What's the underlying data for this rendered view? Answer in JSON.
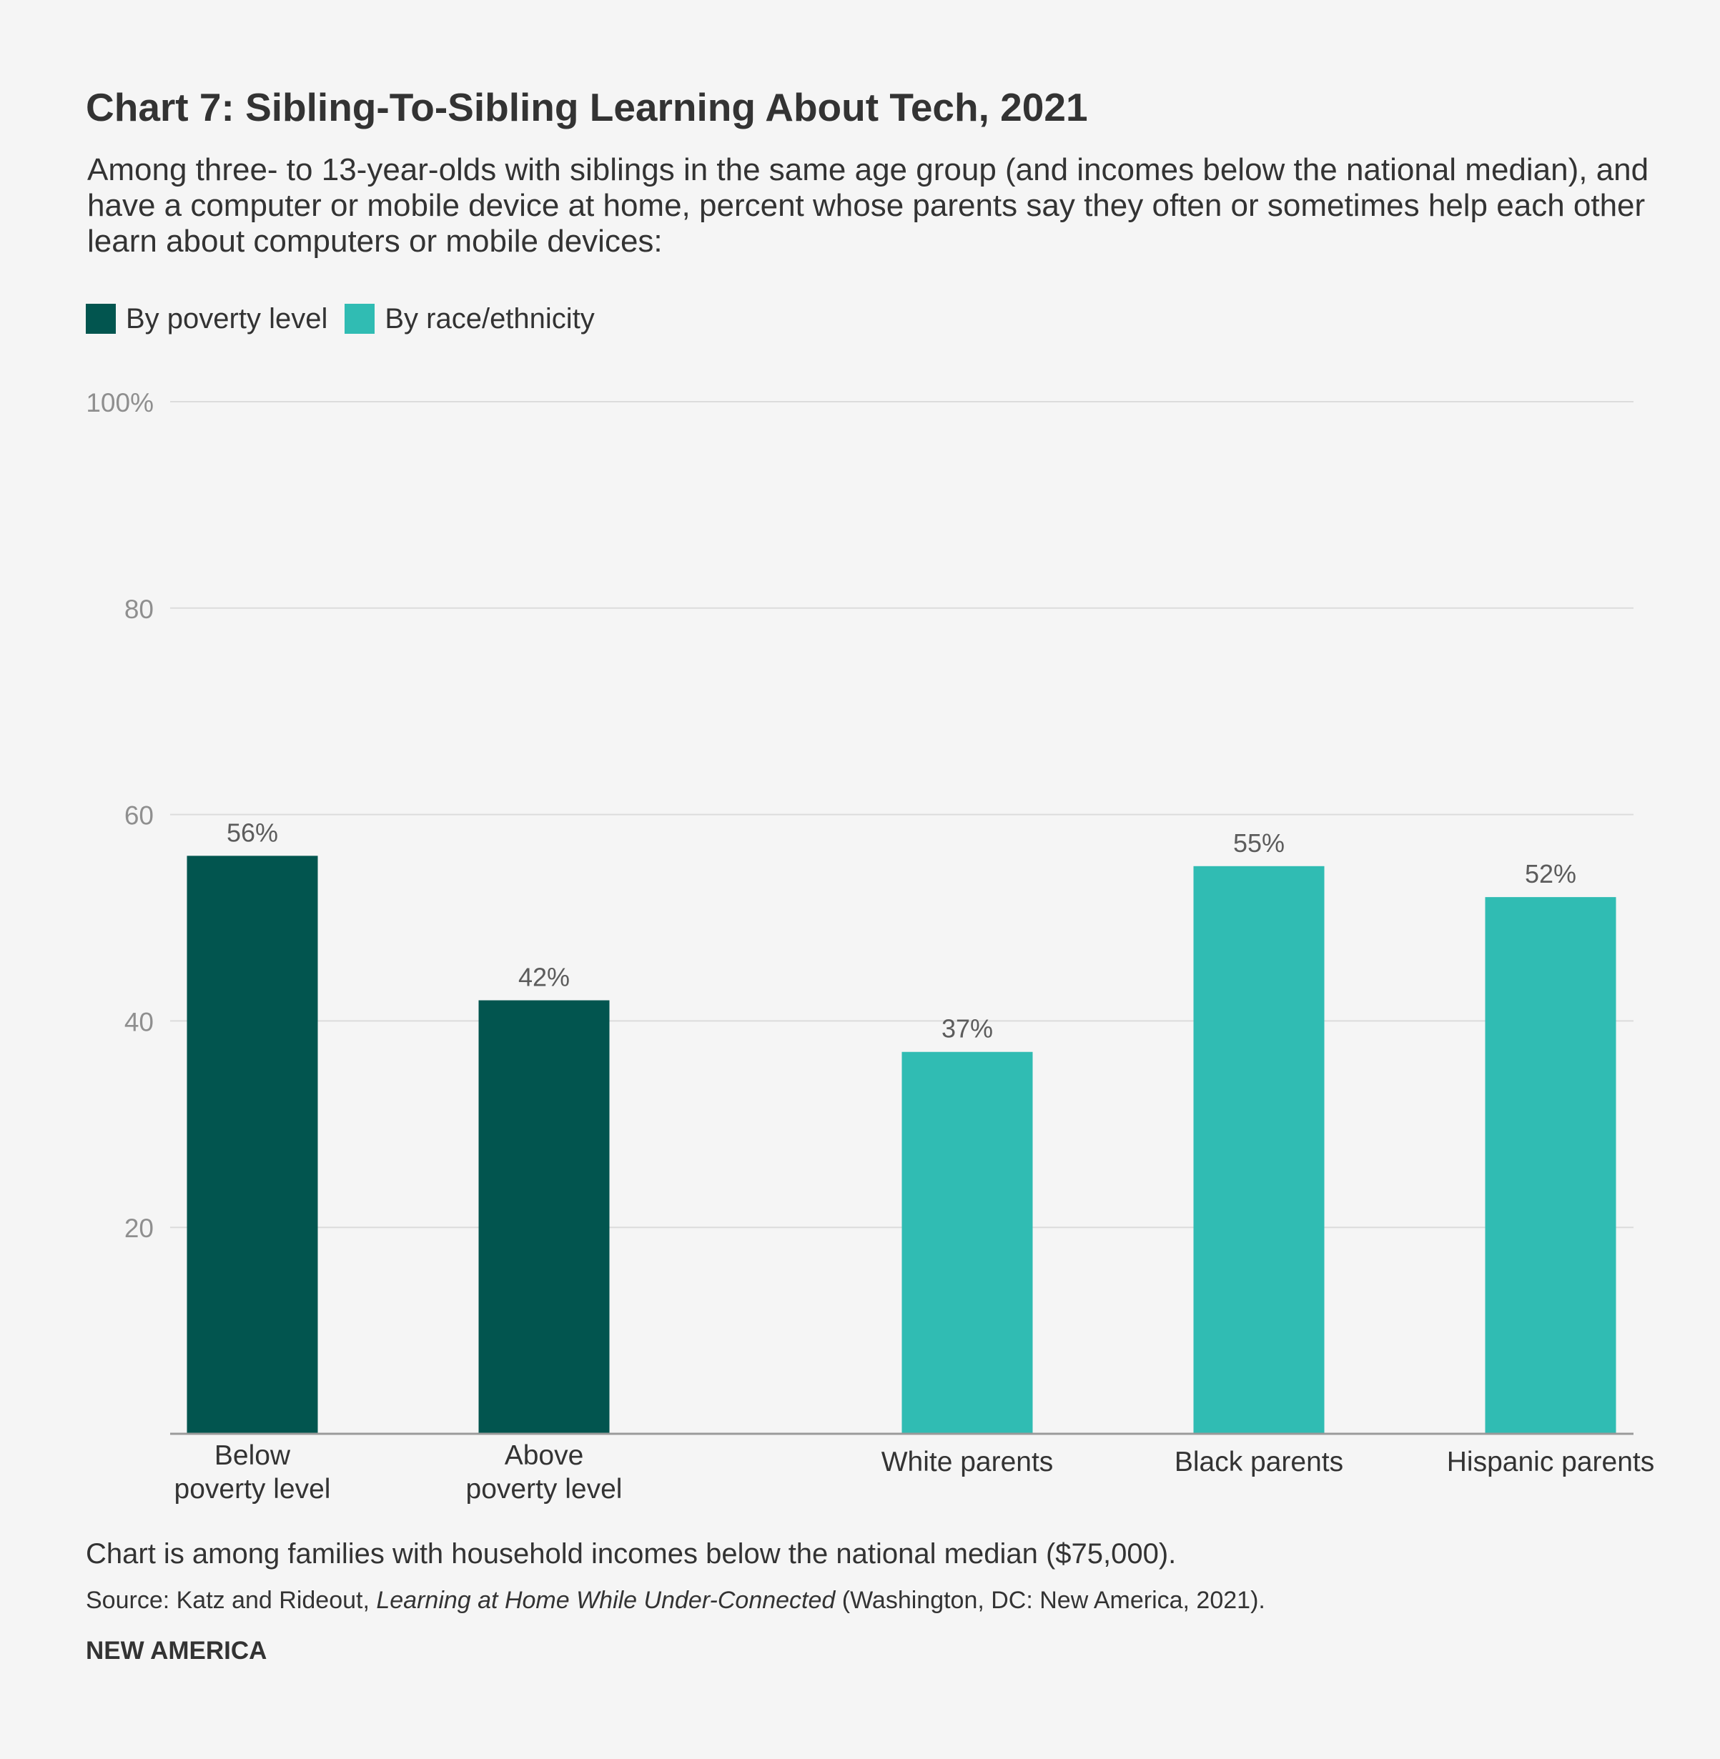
{
  "chart_data": {
    "type": "bar",
    "title": "Chart 7: Sibling-To-Sibling Learning About Tech, 2021",
    "subtitle": "Among three- to 13-year-olds with siblings in the same age group (and incomes below the national median), and have a computer or mobile device at home, percent whose parents say they often or sometimes help each other learn about computers or mobile devices:",
    "legend": [
      {
        "label": "By poverty level",
        "color": "#02554f"
      },
      {
        "label": "By race/ethnicity",
        "color": "#30bcb3"
      }
    ],
    "ylim": [
      0,
      100
    ],
    "yticks": [
      {
        "value": 20,
        "label": "20"
      },
      {
        "value": 40,
        "label": "40"
      },
      {
        "value": 60,
        "label": "60"
      },
      {
        "value": 80,
        "label": "80"
      },
      {
        "value": 100,
        "label": "100%"
      }
    ],
    "bars": [
      {
        "category": [
          "Below",
          "poverty level"
        ],
        "value": 56,
        "label": "56%",
        "group": "By poverty level"
      },
      {
        "category": [
          "Above",
          "poverty level"
        ],
        "value": 42,
        "label": "42%",
        "group": "By poverty level"
      },
      {
        "category": [
          "White parents"
        ],
        "value": 37,
        "label": "37%",
        "group": "By race/ethnicity"
      },
      {
        "category": [
          "Black parents"
        ],
        "value": 55,
        "label": "55%",
        "group": "By race/ethnicity"
      },
      {
        "category": [
          "Hispanic parents"
        ],
        "value": 52,
        "label": "52%",
        "group": "By race/ethnicity"
      }
    ],
    "grid": true
  },
  "footer": {
    "note": "Chart is among families with household incomes below the national median ($75,000).",
    "source_prefix": "Source: Katz and Rideout, ",
    "source_title": "Learning at Home While Under-Connected",
    "source_suffix": " (Washington, DC: New America, 2021).",
    "brand": "NEW AMERICA"
  },
  "colors": {
    "background": "#f5f5f5",
    "grid": "#dcdcdc",
    "axis": "#9a9a9a",
    "tick_text": "#8f8f8f",
    "value_text": "#5c5c5c"
  }
}
